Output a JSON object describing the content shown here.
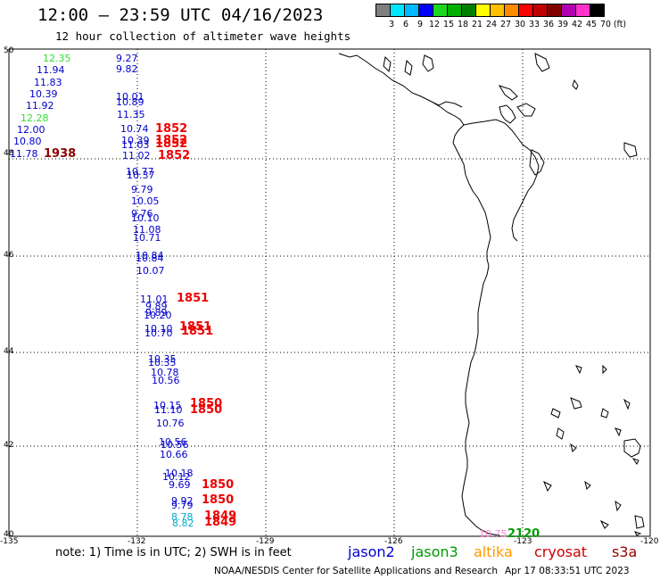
{
  "title": "12:00 — 23:59 UTC 04/16/2023",
  "subtitle": "12 hour collection of altimeter wave heights",
  "colorbar": {
    "unit": "(ft)",
    "colors": [
      "#7f7f7f",
      "#00e5ff",
      "#00b8ff",
      "#0000ff",
      "#1cd81c",
      "#00b000",
      "#008000",
      "#ffff00",
      "#ffc000",
      "#ff8c00",
      "#ff0000",
      "#c00000",
      "#800000",
      "#b000b0",
      "#ff33cc",
      "#000000"
    ],
    "labels": [
      "3",
      "6",
      "9",
      "12",
      "15",
      "18",
      "21",
      "24",
      "27",
      "30",
      "33",
      "36",
      "39",
      "42",
      "45",
      "70"
    ]
  },
  "axes": {
    "lat_labels": [
      "50",
      "48",
      "46",
      "44",
      "42",
      "40"
    ],
    "lon_labels": [
      "-135",
      "-132",
      "-129",
      "-126",
      "-123",
      "-120"
    ]
  },
  "colors": {
    "jason2": "#0000cc",
    "jason3": "#009900",
    "altika": "#ff9900",
    "cryosat": "#cc0000",
    "s3a": "#990000",
    "cyan": "#00aacc",
    "lightgreen": "#33dd33",
    "pink": "#ff88cc",
    "darkred": "#8b0000",
    "red": "#ee0000"
  },
  "observations": [
    {
      "value": "12.35",
      "color": "#33dd33"
    },
    {
      "value": "11.94",
      "color": "#0000cc"
    },
    {
      "value": "11.83",
      "color": "#0000cc"
    },
    {
      "value": "10.39",
      "color": "#0000cc"
    },
    {
      "value": "11.92",
      "color": "#0000cc"
    },
    {
      "value": "12.28",
      "color": "#33dd33"
    },
    {
      "value": "12.00",
      "color": "#0000cc"
    },
    {
      "value": "10.80",
      "color": "#0000cc"
    },
    {
      "value": "11.78",
      "color": "#0000cc"
    },
    {
      "value": "9.27",
      "color": "#0000cc"
    },
    {
      "value": "9.82",
      "color": "#0000cc"
    },
    {
      "value": "10.01",
      "color": "#0000cc"
    },
    {
      "value": "10.89",
      "color": "#0000cc"
    },
    {
      "value": "11.35",
      "color": "#0000cc"
    },
    {
      "value": "10.74",
      "color": "#0000cc"
    },
    {
      "value": "10.39",
      "color": "#0000cc"
    },
    {
      "value": "11.03",
      "color": "#0000cc"
    },
    {
      "value": "11.02",
      "color": "#0000cc"
    },
    {
      "value": "10.77",
      "color": "#0000cc"
    },
    {
      "value": "10.37",
      "color": "#0000cc"
    },
    {
      "value": "9.79",
      "color": "#0000cc"
    },
    {
      "value": "10.05",
      "color": "#0000cc"
    },
    {
      "value": "9.76",
      "color": "#0000cc"
    },
    {
      "value": "10.10",
      "color": "#0000cc"
    },
    {
      "value": "11.08",
      "color": "#0000cc"
    },
    {
      "value": "10.71",
      "color": "#0000cc"
    },
    {
      "value": "10.84",
      "color": "#0000cc"
    },
    {
      "value": "10.84",
      "color": "#0000cc"
    },
    {
      "value": "10.07",
      "color": "#0000cc"
    },
    {
      "value": "11.01",
      "color": "#0000cc"
    },
    {
      "value": "9.89",
      "color": "#0000cc"
    },
    {
      "value": "9.89",
      "color": "#0000cc"
    },
    {
      "value": "10.20",
      "color": "#0000cc"
    },
    {
      "value": "10.10",
      "color": "#0000cc"
    },
    {
      "value": "10.70",
      "color": "#0000cc"
    },
    {
      "value": "10.35",
      "color": "#0000cc"
    },
    {
      "value": "10.35",
      "color": "#0000cc"
    },
    {
      "value": "10.78",
      "color": "#0000cc"
    },
    {
      "value": "10.56",
      "color": "#0000cc"
    },
    {
      "value": "10.15",
      "color": "#0000cc"
    },
    {
      "value": "11.10",
      "color": "#0000cc"
    },
    {
      "value": "10.76",
      "color": "#0000cc"
    },
    {
      "value": "10.56",
      "color": "#0000cc"
    },
    {
      "value": "10.56",
      "color": "#0000cc"
    },
    {
      "value": "10.66",
      "color": "#0000cc"
    },
    {
      "value": "10.18",
      "color": "#0000cc"
    },
    {
      "value": "10.12",
      "color": "#0000cc"
    },
    {
      "value": "9.69",
      "color": "#0000cc"
    },
    {
      "value": "9.92",
      "color": "#0000cc"
    },
    {
      "value": "9.79",
      "color": "#0000cc"
    },
    {
      "value": "8.78",
      "color": "#00aacc"
    },
    {
      "value": "8.82",
      "color": "#00aacc"
    },
    {
      "value": "10.75",
      "color": "#ff88cc"
    }
  ],
  "pass_times": [
    {
      "value": "1938",
      "color": "#8b0000"
    },
    {
      "value": "1852",
      "color": "#ee0000"
    },
    {
      "value": "1852",
      "color": "#ee0000"
    },
    {
      "value": "1852",
      "color": "#ee0000"
    },
    {
      "value": "1852",
      "color": "#ee0000"
    },
    {
      "value": "1851",
      "color": "#ee0000"
    },
    {
      "value": "1851",
      "color": "#ee0000"
    },
    {
      "value": "1851",
      "color": "#ee0000"
    },
    {
      "value": "1850",
      "color": "#ee0000"
    },
    {
      "value": "1850",
      "color": "#ee0000"
    },
    {
      "value": "1850",
      "color": "#ee0000"
    },
    {
      "value": "1850",
      "color": "#ee0000"
    },
    {
      "value": "1849",
      "color": "#ee0000"
    },
    {
      "value": "1849",
      "color": "#ee0000"
    },
    {
      "value": "2120",
      "color": "#009900"
    }
  ],
  "note": "note:  1) Time is in UTC;  2) SWH is in feet",
  "legend": {
    "jason2": "jason2",
    "jason3": "jason3",
    "altika": "altika",
    "cryosat": "cryosat",
    "s3a": "s3a"
  },
  "footer": {
    "credit": "NOAA/NESDIS Center for Satellite Applications and Research",
    "timestamp": "Apr 17 08:33:51 UTC 2023"
  }
}
